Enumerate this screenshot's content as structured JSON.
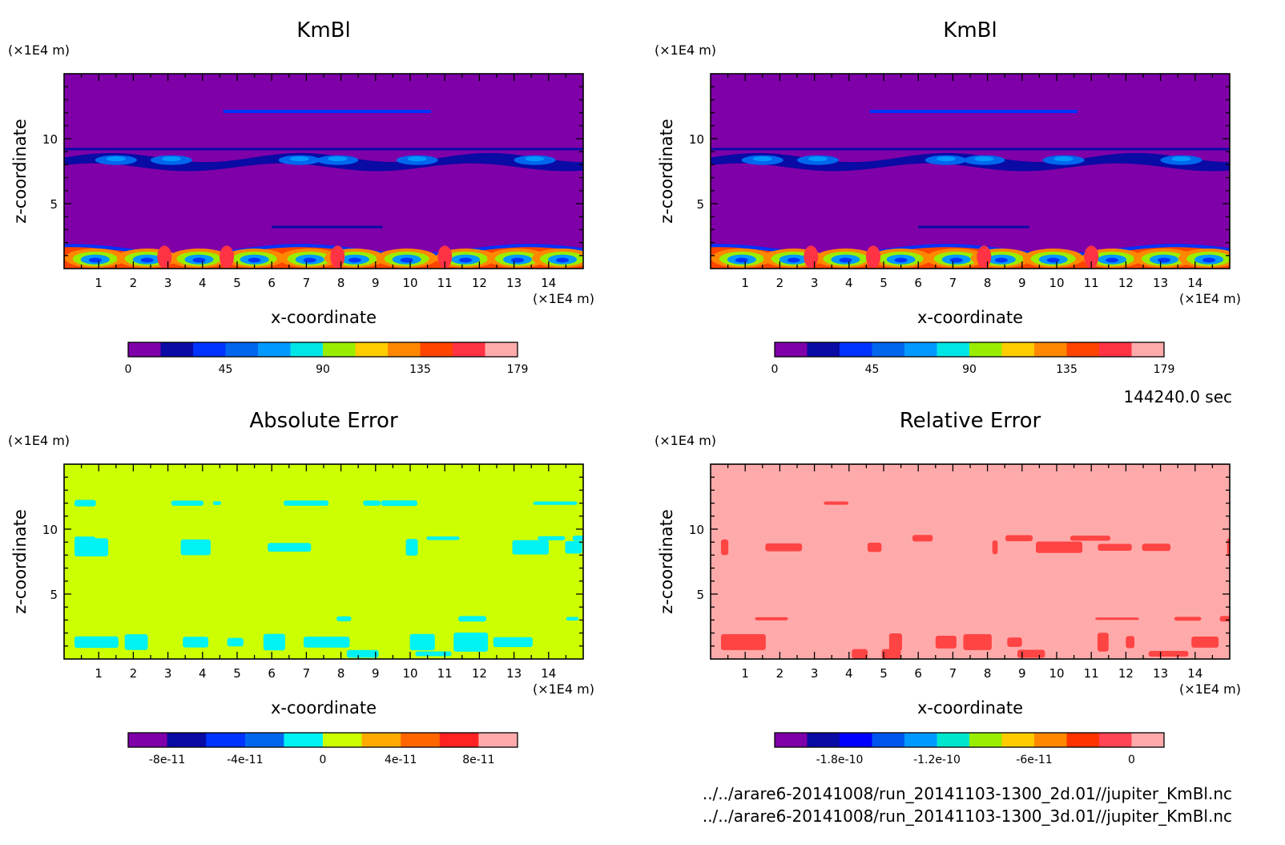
{
  "time_label": "144240.0 sec",
  "files": [
    "../../arare6-20141008/run_20141103-1300_2d.01//jupiter_KmBl.nc",
    "../../arare6-20141008/run_20141103-1300_3d.01//jupiter_KmBl.nc"
  ],
  "chart_data": [
    {
      "type": "heatmap",
      "title": "KmBl",
      "xlabel": "x-coordinate",
      "ylabel": "z-coordinate",
      "x_unit": "(×1E4 m)",
      "y_unit": "(×1E4 m)",
      "xlim": [
        0,
        15
      ],
      "ylim": [
        0,
        15
      ],
      "xticks": [
        "1",
        "2",
        "3",
        "4",
        "5",
        "6",
        "7",
        "8",
        "9",
        "10",
        "11",
        "12",
        "13",
        "14"
      ],
      "yticks": [
        "5",
        "10"
      ],
      "field": "kmbl",
      "colorbar": {
        "colors": [
          "#7f00a8",
          "#0a0aa5",
          "#0033ff",
          "#0066ee",
          "#0099ff",
          "#00e6e6",
          "#99ee00",
          "#ffcc00",
          "#ff8800",
          "#ff4400",
          "#ff3344",
          "#ffaaaa"
        ],
        "ticks": [
          "0",
          "45",
          "90",
          "135",
          "179"
        ]
      }
    },
    {
      "type": "heatmap",
      "title": "KmBl",
      "xlabel": "x-coordinate",
      "ylabel": "z-coordinate",
      "x_unit": "(×1E4 m)",
      "y_unit": "(×1E4 m)",
      "xlim": [
        0,
        15
      ],
      "ylim": [
        0,
        15
      ],
      "xticks": [
        "1",
        "2",
        "3",
        "4",
        "5",
        "6",
        "7",
        "8",
        "9",
        "10",
        "11",
        "12",
        "13",
        "14"
      ],
      "yticks": [
        "5",
        "10"
      ],
      "field": "kmbl",
      "colorbar": {
        "colors": [
          "#7f00a8",
          "#0a0aa5",
          "#0033ff",
          "#0066ee",
          "#0099ff",
          "#00e6e6",
          "#99ee00",
          "#ffcc00",
          "#ff8800",
          "#ff4400",
          "#ff3344",
          "#ffaaaa"
        ],
        "ticks": [
          "0",
          "45",
          "90",
          "135",
          "179"
        ]
      }
    },
    {
      "type": "heatmap",
      "title": "Absolute Error",
      "xlabel": "x-coordinate",
      "ylabel": "z-coordinate",
      "x_unit": "(×1E4 m)",
      "y_unit": "(×1E4 m)",
      "xlim": [
        0,
        15
      ],
      "ylim": [
        0,
        15
      ],
      "xticks": [
        "1",
        "2",
        "3",
        "4",
        "5",
        "6",
        "7",
        "8",
        "9",
        "10",
        "11",
        "12",
        "13",
        "14"
      ],
      "yticks": [
        "5",
        "10"
      ],
      "field": "abs_error",
      "background_color": "#ccff00",
      "patch_color": "#00f2f2",
      "colorbar": {
        "colors": [
          "#7f00a8",
          "#0a0aa5",
          "#0033ff",
          "#0066ee",
          "#00f2f2",
          "#ccff00",
          "#ffaa00",
          "#ff6600",
          "#ff2222",
          "#ffaaaa"
        ],
        "ticks": [
          "-8e-11",
          "-4e-11",
          "0",
          "4e-11",
          "8e-11"
        ]
      }
    },
    {
      "type": "heatmap",
      "title": "Relative Error",
      "xlabel": "x-coordinate",
      "ylabel": "z-coordinate",
      "x_unit": "(×1E4 m)",
      "y_unit": "(×1E4 m)",
      "xlim": [
        0,
        15
      ],
      "ylim": [
        0,
        15
      ],
      "xticks": [
        "1",
        "2",
        "3",
        "4",
        "5",
        "6",
        "7",
        "8",
        "9",
        "10",
        "11",
        "12",
        "13",
        "14"
      ],
      "yticks": [
        "5",
        "10"
      ],
      "field": "rel_error",
      "background_color": "#ffaaaa",
      "patch_color": "#ff4444",
      "colorbar": {
        "colors": [
          "#7f00a8",
          "#0a0aa5",
          "#0000ff",
          "#0055ee",
          "#0099ff",
          "#00e6cc",
          "#99ee00",
          "#ffcc00",
          "#ff8800",
          "#ff3300",
          "#ff4455",
          "#ffaaaa"
        ],
        "ticks": [
          "-1.8e-10",
          "-1.2e-10",
          "-6e-11",
          "0"
        ]
      }
    }
  ]
}
